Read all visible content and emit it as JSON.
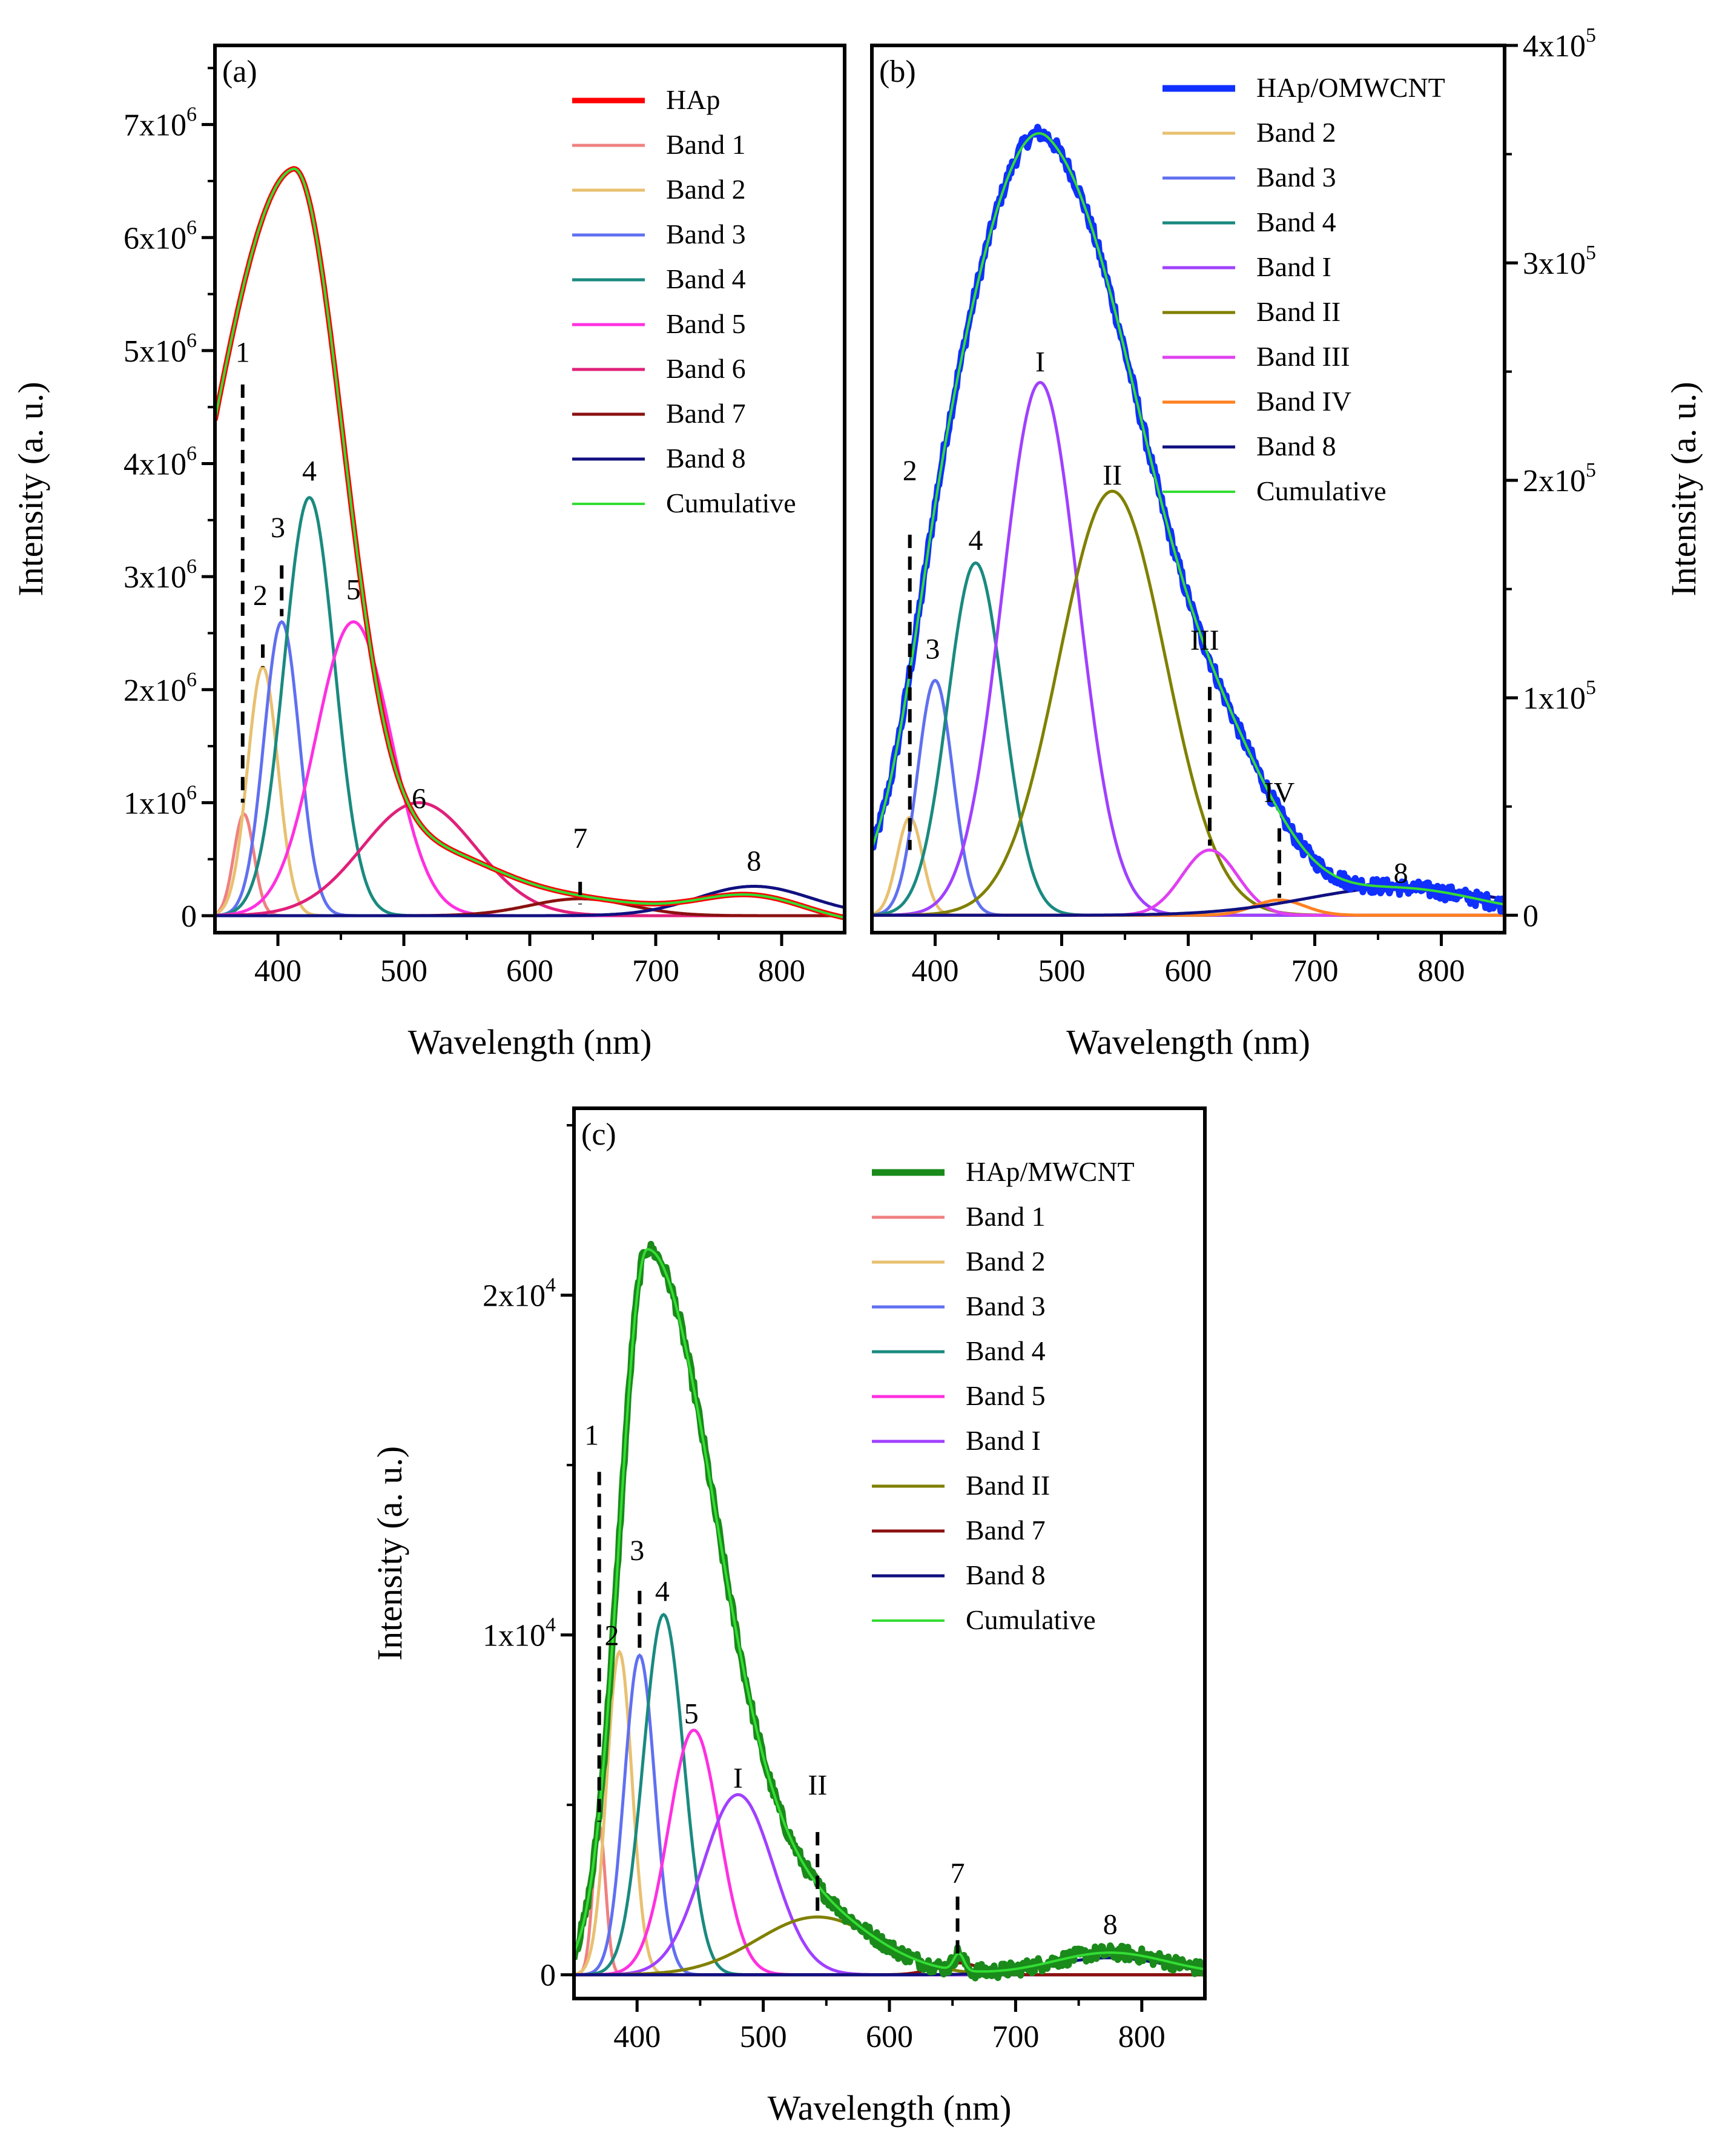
{
  "chart_data": [
    {
      "type": "line",
      "panel": "(a)",
      "xlabel": "Wavelength (nm)",
      "ylabel": "Intensity (a. u.)",
      "xlim": [
        350,
        850
      ],
      "ylim": [
        -150000,
        7700000
      ],
      "y_axis_side": "left",
      "xticks": [
        {
          "v": 400,
          "label": "400"
        },
        {
          "v": 500,
          "label": "500"
        },
        {
          "v": 600,
          "label": "600"
        },
        {
          "v": 700,
          "label": "700"
        },
        {
          "v": 800,
          "label": "800"
        }
      ],
      "yticks": [
        {
          "v": 0,
          "base": "0",
          "exp": ""
        },
        {
          "v": 1000000,
          "base": "1x10",
          "exp": "6"
        },
        {
          "v": 2000000,
          "base": "2x10",
          "exp": "6"
        },
        {
          "v": 3000000,
          "base": "3x10",
          "exp": "6"
        },
        {
          "v": 4000000,
          "base": "4x10",
          "exp": "6"
        },
        {
          "v": 5000000,
          "base": "5x10",
          "exp": "6"
        },
        {
          "v": 6000000,
          "base": "6x10",
          "exp": "6"
        },
        {
          "v": 7000000,
          "base": "7x10",
          "exp": "6"
        }
      ],
      "legend": [
        "HAp",
        "Band 1",
        "Band 2",
        "Band 3",
        "Band 4",
        "Band 5",
        "Band 6",
        "Band 7",
        "Band 8",
        "Cumulative"
      ],
      "main": {
        "name": "HAp",
        "color": "#ff0000",
        "width": 9,
        "peaks": [
          [
            412,
            6600000,
            70,
            40
          ],
          [
            520,
            600000,
            55,
            55
          ],
          [
            640,
            200000,
            60,
            60
          ],
          [
            775,
            250000,
            45,
            45
          ]
        ],
        "noise": 0,
        "baseline": -80000
      },
      "cumulative": {
        "name": "Cumulative",
        "color": "#33dd33"
      },
      "bands": [
        {
          "name": "Band 1",
          "color": "#f08080",
          "center": 373,
          "amp": 900000,
          "sigma": 8,
          "label": "1"
        },
        {
          "name": "Band 2",
          "color": "#e8c070",
          "center": 388,
          "amp": 2200000,
          "sigma": 12,
          "label": "2"
        },
        {
          "name": "Band 3",
          "color": "#6070f0",
          "center": 403,
          "amp": 2600000,
          "sigma": 14,
          "label": "3"
        },
        {
          "name": "Band 4",
          "color": "#1a8a80",
          "center": 425,
          "amp": 3700000,
          "sigma": 20,
          "label": "4"
        },
        {
          "name": "Band 5",
          "color": "#ff30e0",
          "center": 460,
          "amp": 2600000,
          "sigma": 30,
          "label": "5"
        },
        {
          "name": "Band 6",
          "color": "#e0207a",
          "center": 512,
          "amp": 1000000,
          "sigma": 45,
          "label": "6"
        },
        {
          "name": "Band 7",
          "color": "#8b1010",
          "center": 640,
          "amp": 150000,
          "sigma": 40,
          "label": "7"
        },
        {
          "name": "Band 8",
          "color": "#101080",
          "center": 778,
          "amp": 260000,
          "sigma": 45,
          "label": "8"
        }
      ],
      "annotations": [
        {
          "text": "1",
          "x": 372,
          "y": 4900000,
          "dash": [
            372,
            4700000,
            372,
            1000000
          ]
        },
        {
          "text": "2",
          "x": 386,
          "y": 2750000,
          "dash": [
            388,
            2400000,
            388,
            2200000
          ]
        },
        {
          "text": "3",
          "x": 400,
          "y": 3350000,
          "dash": [
            403,
            3100000,
            403,
            2650000
          ]
        },
        {
          "text": "4",
          "x": 425,
          "y": 3850000
        },
        {
          "text": "5",
          "x": 460,
          "y": 2800000
        },
        {
          "text": "6",
          "x": 512,
          "y": 950000
        },
        {
          "text": "7",
          "x": 640,
          "y": 600000,
          "dash": [
            640,
            300000,
            640,
            100000
          ]
        },
        {
          "text": "8",
          "x": 778,
          "y": 400000
        }
      ]
    },
    {
      "type": "line",
      "panel": "(b)",
      "xlabel": "Wavelength (nm)",
      "ylabel": "Intensity (a. u.)",
      "xlim": [
        350,
        850
      ],
      "ylim": [
        -8000,
        400000
      ],
      "y_axis_side": "right",
      "xticks": [
        {
          "v": 400,
          "label": "400"
        },
        {
          "v": 500,
          "label": "500"
        },
        {
          "v": 600,
          "label": "600"
        },
        {
          "v": 700,
          "label": "700"
        },
        {
          "v": 800,
          "label": "800"
        }
      ],
      "yticks": [
        {
          "v": 0,
          "base": "0",
          "exp": ""
        },
        {
          "v": 100000,
          "base": "1x10",
          "exp": "5"
        },
        {
          "v": 200000,
          "base": "2x10",
          "exp": "5"
        },
        {
          "v": 300000,
          "base": "3x10",
          "exp": "5"
        },
        {
          "v": 400000,
          "base": "4x10",
          "exp": "5"
        }
      ],
      "legend": [
        "HAp/OMWCNT",
        "Band 2",
        "Band 3",
        "Band 4",
        "Band I",
        "Band II",
        "Band III",
        "Band IV",
        "Band 8",
        "Cumulative"
      ],
      "main": {
        "name": "HAp/OMWCNT",
        "color": "#1030ff",
        "width": 11,
        "peaks": [
          [
            410,
            90000,
            30,
            40
          ],
          [
            490,
            345000,
            58,
            78
          ],
          [
            640,
            30000,
            40,
            40
          ],
          [
            770,
            12000,
            60,
            60
          ]
        ],
        "noise": 3500,
        "baseline": 0
      },
      "cumulative": {
        "name": "Cumulative",
        "color": "#33dd33"
      },
      "bands": [
        {
          "name": "Band 2",
          "color": "#e8c070",
          "center": 380,
          "amp": 45000,
          "sigma": 10,
          "label": "2"
        },
        {
          "name": "Band 3",
          "color": "#6070f0",
          "center": 400,
          "amp": 108000,
          "sigma": 14,
          "label": "3"
        },
        {
          "name": "Band 4",
          "color": "#1a8a80",
          "center": 432,
          "amp": 162000,
          "sigma": 22,
          "label": "4"
        },
        {
          "name": "Band I",
          "color": "#a040ff",
          "center": 483,
          "amp": 245000,
          "sigma": 30,
          "label": "I"
        },
        {
          "name": "Band II",
          "color": "#808000",
          "center": 540,
          "amp": 195000,
          "sigma": 42,
          "label": "II"
        },
        {
          "name": "Band III",
          "color": "#e040f0",
          "center": 617,
          "amp": 30000,
          "sigma": 22,
          "label": "III"
        },
        {
          "name": "Band IV",
          "color": "#ff8020",
          "center": 672,
          "amp": 7000,
          "sigma": 20,
          "label": "IV"
        },
        {
          "name": "Band 8",
          "color": "#101080",
          "center": 770,
          "amp": 13000,
          "sigma": 75,
          "label": "8"
        }
      ],
      "annotations": [
        {
          "text": "2",
          "x": 380,
          "y": 200000,
          "dash": [
            380,
            175000,
            380,
            30000
          ]
        },
        {
          "text": "3",
          "x": 398,
          "y": 118000
        },
        {
          "text": "4",
          "x": 432,
          "y": 168000
        },
        {
          "text": "I",
          "x": 483,
          "y": 250000
        },
        {
          "text": "II",
          "x": 540,
          "y": 198000
        },
        {
          "text": "III",
          "x": 613,
          "y": 122000,
          "dash": [
            617,
            105000,
            617,
            32000
          ]
        },
        {
          "text": "IV",
          "x": 672,
          "y": 52000,
          "dash": [
            672,
            40000,
            672,
            8000
          ]
        },
        {
          "text": "8",
          "x": 768,
          "y": 15000
        }
      ]
    },
    {
      "type": "line",
      "panel": "(c)",
      "xlabel": "Wavelength (nm)",
      "ylabel": "Intensity (a. u.)",
      "xlim": [
        350,
        850
      ],
      "ylim": [
        -700,
        25500
      ],
      "y_axis_side": "left",
      "xticks": [
        {
          "v": 400,
          "label": "400"
        },
        {
          "v": 500,
          "label": "500"
        },
        {
          "v": 600,
          "label": "600"
        },
        {
          "v": 700,
          "label": "700"
        },
        {
          "v": 800,
          "label": "800"
        }
      ],
      "yticks": [
        {
          "v": 0,
          "base": "0",
          "exp": ""
        },
        {
          "v": 10000,
          "base": "1x10",
          "exp": "4"
        },
        {
          "v": 20000,
          "base": "2x10",
          "exp": "4"
        }
      ],
      "legend": [
        "HAp/MWCNT",
        "Band 1",
        "Band 2",
        "Band 3",
        "Band 4",
        "Band 5",
        "Band I",
        "Band II",
        "Band 7",
        "Band 8",
        "Cumulative"
      ],
      "main": {
        "name": "HAp/MWCNT",
        "color": "#1a8a1a",
        "width": 11,
        "peaks": [
          [
            408,
            21300,
            22,
            55
          ],
          [
            540,
            1600,
            50,
            50
          ],
          [
            655,
            500,
            4,
            4
          ],
          [
            775,
            650,
            45,
            45
          ]
        ],
        "noise": 220,
        "baseline": 0
      },
      "cumulative": {
        "name": "Cumulative",
        "color": "#33dd33"
      },
      "bands": [
        {
          "name": "Band 1",
          "color": "#f08080",
          "center": 370,
          "amp": 4400,
          "sigma": 5,
          "label": "1"
        },
        {
          "name": "Band 2",
          "color": "#e8c070",
          "center": 386,
          "amp": 9500,
          "sigma": 10,
          "label": "2"
        },
        {
          "name": "Band 3",
          "color": "#6070f0",
          "center": 402,
          "amp": 9400,
          "sigma": 12,
          "label": "3"
        },
        {
          "name": "Band 4",
          "color": "#1a8a80",
          "center": 421,
          "amp": 10600,
          "sigma": 16,
          "label": "4"
        },
        {
          "name": "Band 5",
          "color": "#ff30e0",
          "center": 445,
          "amp": 7200,
          "sigma": 20,
          "label": "5"
        },
        {
          "name": "Band I",
          "color": "#a040ff",
          "center": 480,
          "amp": 5300,
          "sigma": 28,
          "label": "I"
        },
        {
          "name": "Band II",
          "color": "#808000",
          "center": 543,
          "amp": 1700,
          "sigma": 48,
          "label": "II"
        },
        {
          "name": "Band 7",
          "color": "#8b1010",
          "center": 654,
          "amp": 350,
          "sigma": 18,
          "label": "7"
        },
        {
          "name": "Band 8",
          "color": "#101080",
          "center": 775,
          "amp": 500,
          "sigma": 45,
          "label": "8"
        }
      ],
      "annotations": [
        {
          "text": "1",
          "x": 364,
          "y": 15600,
          "dash": [
            370,
            14800,
            370,
            4500
          ]
        },
        {
          "text": "2",
          "x": 380,
          "y": 9700
        },
        {
          "text": "3",
          "x": 400,
          "y": 12200,
          "dash": [
            402,
            11300,
            402,
            9500
          ]
        },
        {
          "text": "4",
          "x": 420,
          "y": 11000
        },
        {
          "text": "5",
          "x": 443,
          "y": 7400
        },
        {
          "text": "I",
          "x": 480,
          "y": 5500
        },
        {
          "text": "II",
          "x": 543,
          "y": 5300,
          "dash": [
            543,
            4200,
            543,
            1800
          ]
        },
        {
          "text": "7",
          "x": 654,
          "y": 2700,
          "dash": [
            654,
            2300,
            654,
            600
          ]
        },
        {
          "text": "8",
          "x": 775,
          "y": 1200
        }
      ]
    }
  ]
}
